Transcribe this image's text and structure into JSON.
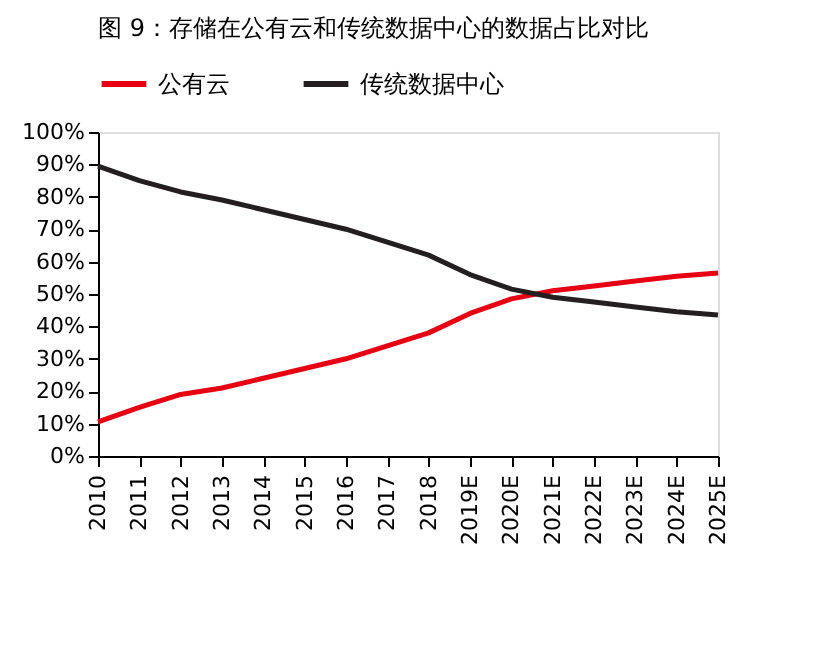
{
  "chart_data": {
    "type": "line",
    "title": "图 9：存储在公有云和传统数据中心的数据占比对比",
    "categories": [
      "2010",
      "2011",
      "2012",
      "2013",
      "2014",
      "2015",
      "2016",
      "2017",
      "2018",
      "2019E",
      "2020E",
      "2021E",
      "2022E",
      "2023E",
      "2024E",
      "2025E"
    ],
    "series": [
      {
        "name": "公有云",
        "color": "#e60012",
        "values": [
          10.5,
          15,
          19,
          21,
          24,
          27,
          30,
          34,
          38,
          44,
          48.5,
          51,
          52.5,
          54,
          55.5,
          56.5
        ]
      },
      {
        "name": "传统数据中心",
        "color": "#231f20",
        "values": [
          89.5,
          85,
          81.5,
          79,
          76,
          73,
          70,
          66,
          62,
          56,
          51.5,
          49,
          47.5,
          46,
          44.5,
          43.5
        ]
      }
    ],
    "ylim": [
      0,
      100
    ],
    "yticks": [
      {
        "value": 0,
        "label": "0%"
      },
      {
        "value": 10,
        "label": "10%"
      },
      {
        "value": 20,
        "label": "20%"
      },
      {
        "value": 30,
        "label": "30%"
      },
      {
        "value": 40,
        "label": "40%"
      },
      {
        "value": 50,
        "label": "50%"
      },
      {
        "value": 60,
        "label": "60%"
      },
      {
        "value": 70,
        "label": "70%"
      },
      {
        "value": 80,
        "label": "80%"
      },
      {
        "value": 90,
        "label": "90%"
      },
      {
        "value": 100,
        "label": "100%"
      }
    ],
    "grid": false,
    "legend": "top",
    "marker": "none",
    "line_style": "solid"
  }
}
